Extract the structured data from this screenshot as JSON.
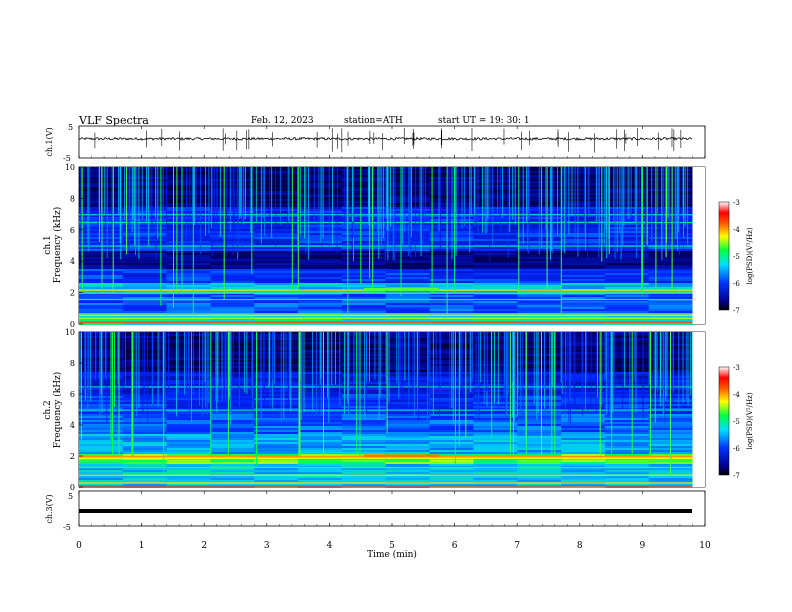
{
  "header": {
    "title": "VLF  Spectra",
    "date": "Feb. 12, 2023",
    "station": "station=ATH",
    "start": "start  UT  =    19: 30: 1"
  },
  "chart_data": [
    {
      "type": "line",
      "panel": "ch1-waveform",
      "ylabel": "ch.1(V)",
      "ylim": [
        -5,
        5
      ],
      "yticks": [
        "5",
        "-5"
      ],
      "xlim": [
        0,
        10
      ],
      "description_values": {
        "baseline_v": 1.0,
        "noise_amplitude_v": 0.4
      }
    },
    {
      "type": "heatmap",
      "panel": "ch1-spectrogram",
      "ylabel": "ch.1\nFrequency  (kHz)",
      "ylabel_lines": [
        "ch.1",
        "Frequency  (kHz)"
      ],
      "ylim": [
        0,
        10
      ],
      "yticks": [
        "0",
        "2",
        "4",
        "6",
        "8",
        "10"
      ],
      "xlim": [
        0,
        10
      ],
      "data_end_min": 9.8,
      "colorbar": {
        "label": "log(PSD)(V²/Hz)",
        "range": [
          -7,
          -3
        ],
        "ticks": [
          "-3",
          "-4",
          "-5",
          "-6",
          "-7"
        ]
      }
    },
    {
      "type": "heatmap",
      "panel": "ch2-spectrogram",
      "ylabel": "ch.2\nFrequency  (kHz)",
      "ylabel_lines": [
        "ch.2",
        "Frequency  (kHz)"
      ],
      "ylim": [
        0,
        10
      ],
      "yticks": [
        "0",
        "2",
        "4",
        "6",
        "8",
        "10"
      ],
      "xlim": [
        0,
        10
      ],
      "data_end_min": 9.8,
      "colorbar": {
        "label": "log(PSD)(V²/Hz)",
        "range": [
          -7,
          -3
        ],
        "ticks": [
          "-3",
          "-4",
          "-5",
          "-6",
          "-7"
        ]
      }
    },
    {
      "type": "line",
      "panel": "ch3-waveform",
      "ylabel": "ch.3(V)",
      "ylim": [
        -5,
        5
      ],
      "yticks": [
        "5",
        "-5"
      ],
      "xlim": [
        0,
        10
      ],
      "description_values": {
        "baseline_v": -1.3
      }
    }
  ],
  "xaxis": {
    "label": "Time  (min)",
    "ticks": [
      "0",
      "1",
      "2",
      "3",
      "4",
      "5",
      "6",
      "7",
      "8",
      "9",
      "10"
    ]
  },
  "colors": {
    "background": "#000000",
    "frame": "#000000"
  }
}
